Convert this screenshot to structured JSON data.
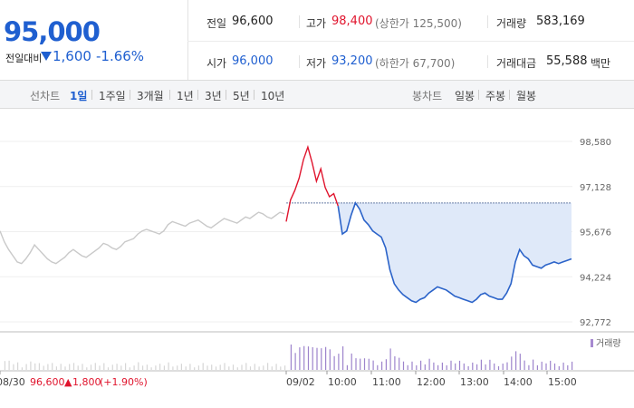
{
  "quote": {
    "price": "95,000",
    "change_label": "전일대비",
    "change_value": "1,600",
    "change_percent": "-1.66%",
    "prev_close_label": "전일",
    "prev_close": "96,600",
    "high_label": "고가",
    "high": "98,400",
    "upper_limit": "(상한가 125,500)",
    "volume_label": "거래량",
    "volume": "583,169",
    "open_label": "시가",
    "open": "96,000",
    "low_label": "저가",
    "low": "93,200",
    "lower_limit": "(하한가 67,700)",
    "amount_label": "거래대금",
    "amount": "55,588",
    "amount_unit": "백만",
    "colors": {
      "up": "#e0142d",
      "down": "#1f5fd0"
    }
  },
  "tabs": {
    "line_label": "선차트",
    "line_tabs": [
      "1일",
      "1주일",
      "3개월",
      "1년",
      "3년",
      "5년",
      "10년"
    ],
    "line_active": "1일",
    "candle_label": "봉차트",
    "candle_tabs": [
      "일봉",
      "주봉",
      "월봉"
    ]
  },
  "chart_data": {
    "type": "line",
    "y_ticks": [
      "98,580",
      "97,128",
      "95,676",
      "94,224",
      "92,772"
    ],
    "y_range": [
      92772,
      98580
    ],
    "x_tick_labels": [
      "08/30",
      "09/02",
      "10:00",
      "11:00",
      "12:00",
      "13:00",
      "14:00",
      "15:00"
    ],
    "reference_price": 96600,
    "prev_day_note": {
      "date": "08/30",
      "price": "96,600",
      "arrow": "▲",
      "change": "1,800",
      "pct": "(+1.90%)"
    },
    "volume_legend": "거래량",
    "prev_day_series": [
      95700,
      95350,
      95100,
      94900,
      94700,
      94650,
      94800,
      95000,
      95250,
      95100,
      94950,
      94800,
      94700,
      94650,
      94750,
      94850,
      95000,
      95100,
      95000,
      94900,
      94850,
      94950,
      95050,
      95150,
      95300,
      95250,
      95150,
      95100,
      95200,
      95350,
      95400,
      95450,
      95600,
      95700,
      95750,
      95700,
      95650,
      95600,
      95700,
      95900,
      96000,
      95950,
      95900,
      95850,
      95950,
      96000,
      96050,
      95950,
      95850,
      95800,
      95900,
      96000,
      96100,
      96050,
      96000,
      95950,
      96050,
      96150,
      96100,
      96200,
      96300,
      96250,
      96150,
      96100,
      96200,
      96300,
      96250
    ],
    "today_series": [
      96000,
      96700,
      97000,
      97400,
      98000,
      98400,
      97900,
      97300,
      97700,
      97100,
      96800,
      96900,
      96500,
      95600,
      95700,
      96200,
      96600,
      96400,
      96050,
      95900,
      95700,
      95600,
      95500,
      95150,
      94450,
      94000,
      93800,
      93650,
      93550,
      93450,
      93400,
      93500,
      93550,
      93700,
      93800,
      93900,
      93850,
      93800,
      93700,
      93600,
      93550,
      93500,
      93450,
      93400,
      93500,
      93650,
      93700,
      93600,
      93550,
      93500,
      93500,
      93700,
      94000,
      94700,
      95100,
      94900,
      94800,
      94600,
      94550,
      94500,
      94600,
      94650,
      94700,
      94650,
      94700,
      94750,
      94800
    ]
  }
}
